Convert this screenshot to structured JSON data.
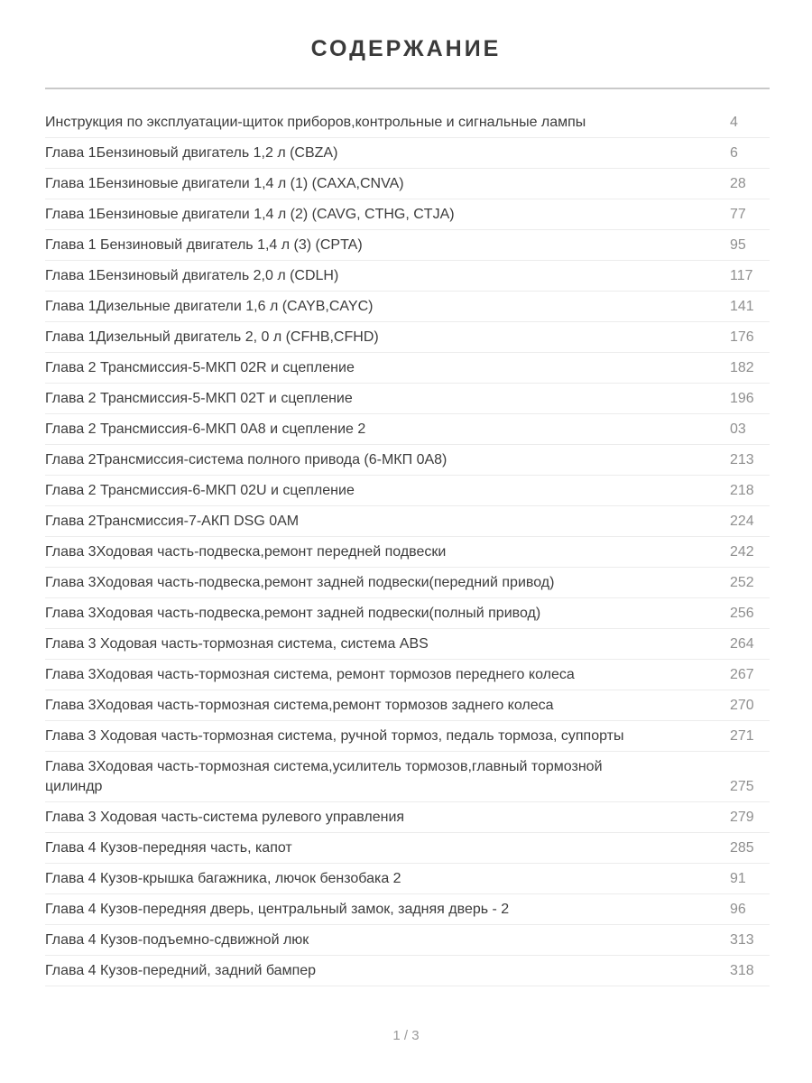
{
  "page": {
    "title": "СОДЕРЖАНИЕ",
    "footer": "1 / 3"
  },
  "colors": {
    "background": "#ffffff",
    "title_text": "#3a3a3a",
    "entry_text": "#3c3c3c",
    "page_number_text": "#8f8f8f",
    "top_rule": "#c9c9c9",
    "row_divider": "#ececec",
    "footer_text": "#9a9a9a"
  },
  "toc": {
    "entries": [
      {
        "label": "Инструкция по эксплуатации-щиток приборов,контрольные и сигнальные лампы",
        "page": "4"
      },
      {
        "label": "Глава 1Бензиновый двигатель 1,2 л (CBZA)",
        "page": "6"
      },
      {
        "label": "Глава 1Бензиновые двигатели 1,4 л (1) (CAXA,CNVA)",
        "page": "28"
      },
      {
        "label": "Глава 1Бензиновые двигатели 1,4 л (2) (CAVG, CTHG, CTJA)",
        "page": "77"
      },
      {
        "label": "Глава 1 Бензиновый двигатель 1,4 л (3) (CPTA)",
        "page": "95"
      },
      {
        "label": "Глава 1Бензиновый двигатель 2,0 л (CDLH)",
        "page": "117"
      },
      {
        "label": "Глава 1Дизельные двигатели 1,6 л (CAYB,CAYC)",
        "page": "141"
      },
      {
        "label": "Глава 1Дизельный двигатель 2, 0 л (CFHB,CFHD)",
        "page": "176"
      },
      {
        "label": "Глава 2 Трансмиссия-5-МКП 02R и сцепление",
        "page": "182"
      },
      {
        "label": "Глава 2 Трансмиссия-5-МКП 02T и сцепление",
        "page": "196"
      },
      {
        "label": "Глава 2 Трансмиссия-6-МКП 0А8 и сцепление 2",
        "page": "03"
      },
      {
        "label": "Глава 2Трансмиссия-система полного привода (6-МКП 0А8)",
        "page": "213"
      },
      {
        "label": "Глава 2 Трансмиссия-6-МКП 02U и сцепление",
        "page": "218"
      },
      {
        "label": "Глава 2Трансмиссия-7-АКП DSG 0AM",
        "page": "224"
      },
      {
        "label": "Глава 3Ходовая часть-подвеска,ремонт передней подвески",
        "page": "242"
      },
      {
        "label": "Глава 3Ходовая часть-подвеска,ремонт задней подвески(передний привод)",
        "page": "252"
      },
      {
        "label": "Глава 3Ходовая часть-подвеска,ремонт задней подвески(полный привод)",
        "page": "256"
      },
      {
        "label": "Глава 3 Ходовая часть-тормозная система, система ABS",
        "page": "264"
      },
      {
        "label": "Глава 3Ходовая часть-тормозная система, ремонт тормозов переднего колеса",
        "page": "267"
      },
      {
        "label": "Глава 3Ходовая часть-тормозная система,ремонт тормозов заднего колеса",
        "page": "270"
      },
      {
        "label": "Глава 3 Ходовая часть-тормозная система, ручной тормоз, педаль тормоза, суппорты",
        "page": "271"
      },
      {
        "label": "Глава 3Ходовая часть-тормозная система,усилитель тормозов,главный тормозной\nцилиндр",
        "page": "275"
      },
      {
        "label": "Глава 3 Ходовая часть-система рулевого управления",
        "page": "279"
      },
      {
        "label": "Глава 4 Кузов-передняя часть, капот",
        "page": "285"
      },
      {
        "label": "Глава 4 Кузов-крышка багажника, лючок бензобака 2",
        "page": "91"
      },
      {
        "label": "Глава 4 Кузов-передняя дверь, центральный замок, задняя дверь - 2",
        "page": "96"
      },
      {
        "label": "Глава 4 Кузов-подъемно-сдвижной люк",
        "page": "313"
      },
      {
        "label": "Глава 4 Кузов-передний, задний бампер",
        "page": "318"
      }
    ]
  }
}
